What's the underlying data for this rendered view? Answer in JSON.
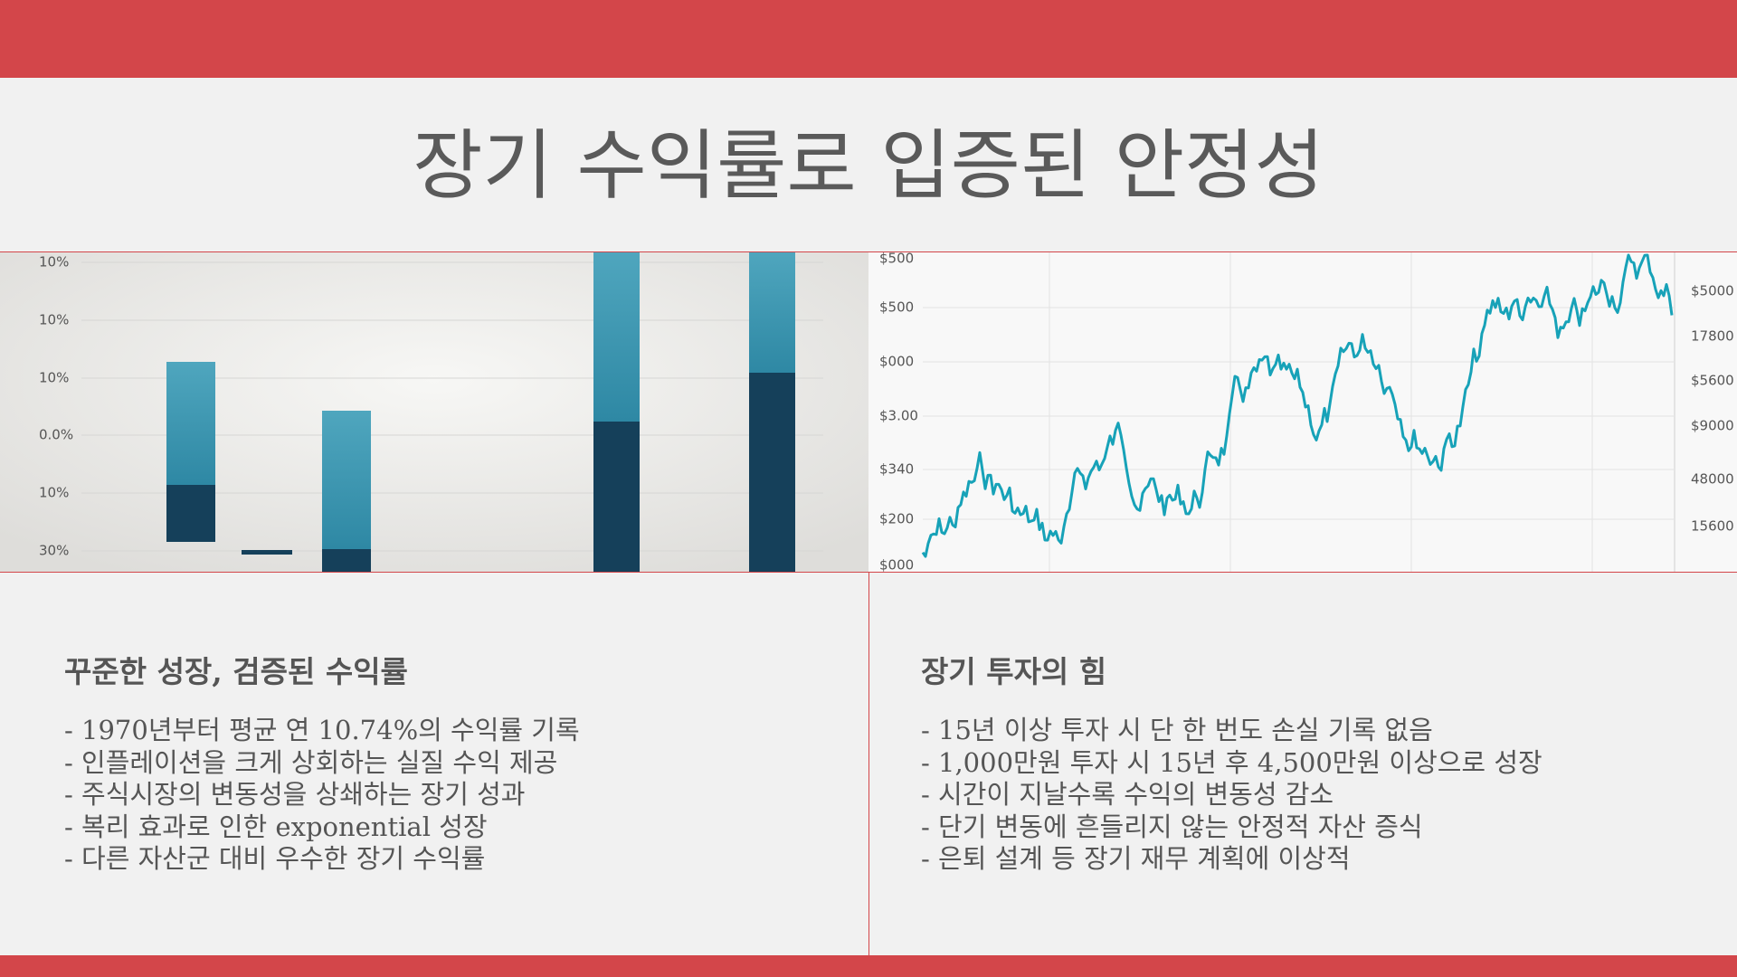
{
  "header": {
    "title": "장기 수익률로 입증된 안정성"
  },
  "figures": {
    "left": {
      "axis_labels": [
        "10%",
        "10%",
        "10%",
        "0.0%",
        "10%",
        "30%"
      ]
    },
    "right": {
      "axis_labels_left": [
        "$500",
        "$500",
        "$000",
        "$3.00",
        "$340",
        "$200",
        "$000"
      ],
      "axis_labels_right": [
        "$5000",
        "17800",
        "$5600",
        "$9000",
        "48000",
        "15600"
      ]
    }
  },
  "sections": [
    {
      "heading": "꾸준한 성장, 검증된 수익률",
      "bullets": [
        "- 1970년부터 평균 연 10.74%의 수익률 기록",
        "- 인플레이션을 크게 상회하는 실질 수익 제공",
        "- 주식시장의 변동성을 상쇄하는 장기 성과",
        "- 복리 효과로 인한 exponential 성장",
        "- 다른 자산군 대비 우수한 장기 수익률"
      ]
    },
    {
      "heading": "장기 투자의 힘",
      "bullets": [
        "- 15년 이상 투자 시 단 한 번도 손실 기록 없음",
        "- 1,000만원 투자 시 15년 후 4,500만원 이상으로 성장",
        "- 시간이 지날수록 수익의 변동성 감소",
        "- 단기 변동에 흔들리지 않는 안정적 자산 증식",
        "- 은퇴 설계 등 장기 재무 계획에 이상적"
      ]
    }
  ]
}
